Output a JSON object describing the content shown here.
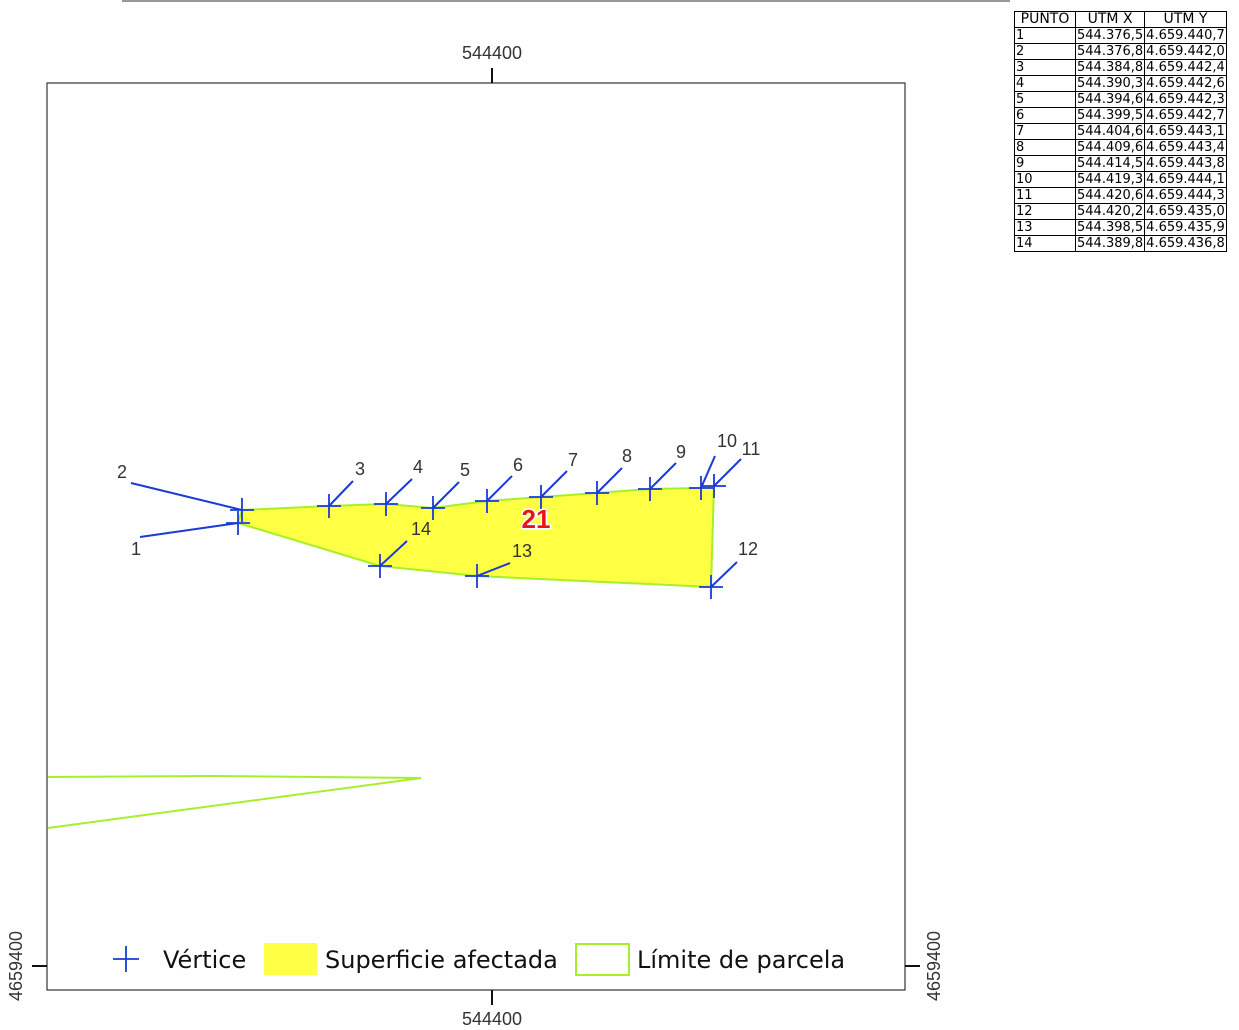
{
  "map": {
    "grid_x_value": "544400",
    "grid_y_value": "4659400",
    "parcel_number": "21",
    "vertex_labels": [
      "1",
      "2",
      "3",
      "4",
      "5",
      "6",
      "7",
      "8",
      "9",
      "10",
      "11",
      "12",
      "13",
      "14"
    ],
    "colors": {
      "vertex": "#1a3bd6",
      "affected_fill": "#ffff44",
      "parcel_boundary": "#a6ef2a",
      "parcel_number": "#e8141b"
    }
  },
  "legend": {
    "items": [
      {
        "label": "Vértice",
        "icon": "vertex-cross-icon"
      },
      {
        "label": "Superficie afectada",
        "icon": "yellow-fill-swatch"
      },
      {
        "label": "Límite de parcela",
        "icon": "green-outline-swatch"
      }
    ]
  },
  "table": {
    "headers": [
      "PUNTO",
      "UTM X",
      "UTM Y"
    ],
    "rows": [
      [
        "1",
        "544.376,5",
        "4.659.440,7"
      ],
      [
        "2",
        "544.376,8",
        "4.659.442,0"
      ],
      [
        "3",
        "544.384,8",
        "4.659.442,4"
      ],
      [
        "4",
        "544.390,3",
        "4.659.442,6"
      ],
      [
        "5",
        "544.394,6",
        "4.659.442,3"
      ],
      [
        "6",
        "544.399,5",
        "4.659.442,7"
      ],
      [
        "7",
        "544.404,6",
        "4.659.443,1"
      ],
      [
        "8",
        "544.409,6",
        "4.659.443,4"
      ],
      [
        "9",
        "544.414,5",
        "4.659.443,8"
      ],
      [
        "10",
        "544.419,3",
        "4.659.444,1"
      ],
      [
        "11",
        "544.420,6",
        "4.659.444,3"
      ],
      [
        "12",
        "544.420,2",
        "4.659.435,0"
      ],
      [
        "13",
        "544.398,5",
        "4.659.435,9"
      ],
      [
        "14",
        "544.389,8",
        "4.659.436,8"
      ]
    ]
  }
}
